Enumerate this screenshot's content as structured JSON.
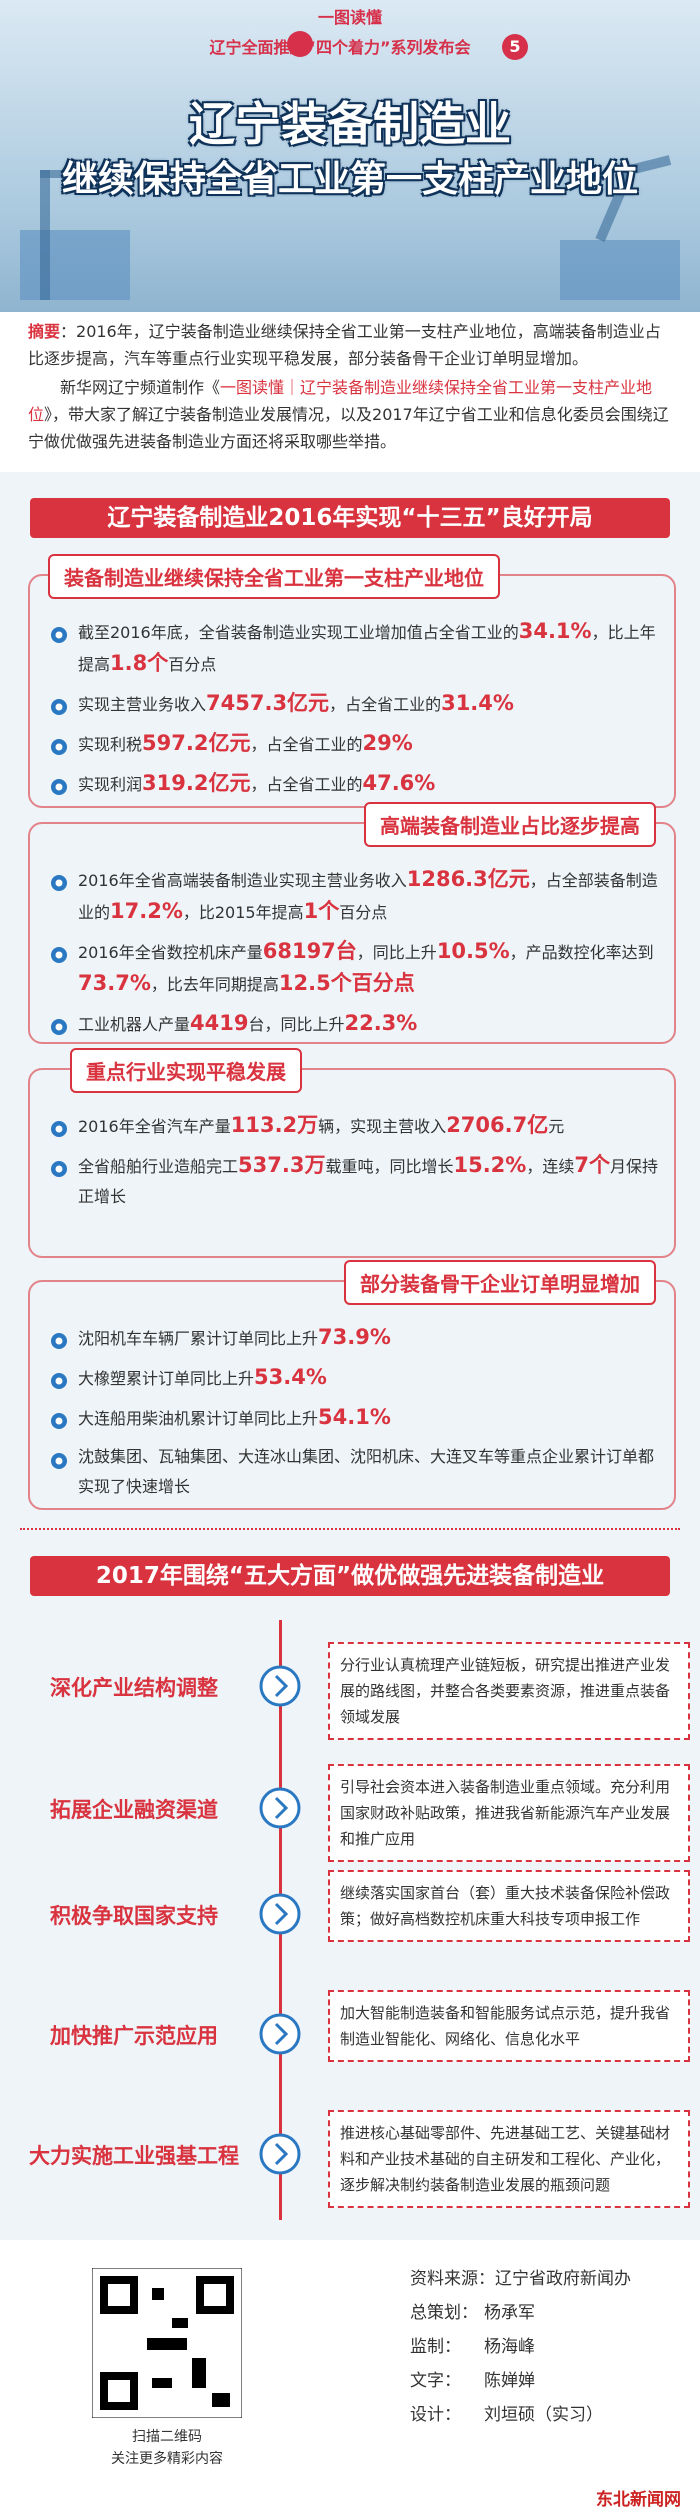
{
  "header": {
    "series_label": "一图读懂",
    "series_title": "辽宁全面推进“四个着力”系列发布会",
    "series_number": "5",
    "title_line1": "辽宁装备制造业",
    "title_line2": "继续保持全省工业第一支柱产业地位"
  },
  "abstract": {
    "label": "摘要",
    "text": "：2016年，辽宁装备制造业继续保持全省工业第一支柱产业地位，高端装备制造业占比逐步提高，汽车等重点行业实现平稳发展，部分装备骨干企业订单明显增加。",
    "intro": "新华网辽宁频道制作《",
    "link": "一图读懂｜辽宁装备制造业继续保持全省工业第一支柱产业地位",
    "outro": "》，带大家了解辽宁装备制造业发展情况，以及2017年辽宁省工业和信息化委员会围绕辽宁做优做强先进装备制造业方面还将采取哪些举措。"
  },
  "section1": {
    "title": "辽宁装备制造业2016年实现“十三五”良好开局",
    "groups": [
      {
        "heading": "装备制造业继续保持全省工业第一支柱产业地位",
        "items": [
          [
            "截至2016年底，全省装备制造业实现工业增加值占全省工业的",
            "34.1%",
            "，比上年提高",
            "1.8个",
            "百分点"
          ],
          [
            "实现主营业务收入",
            "7457.3亿元",
            "，占全省工业的",
            "31.4%"
          ],
          [
            "实现利税",
            "597.2亿元",
            "，占全省工业的",
            "29%"
          ],
          [
            "实现利润",
            "319.2亿元",
            "，占全省工业的",
            "47.6%"
          ]
        ]
      },
      {
        "heading": "高端装备制造业占比逐步提高",
        "items": [
          [
            "2016年全省高端装备制造业实现主营业务收入",
            "1286.3亿元",
            "，占全部装备制造业的",
            "17.2%",
            "，比2015年提高",
            "1个",
            "百分点"
          ],
          [
            "2016年全省数控机床产量",
            "68197台",
            "，同比上升",
            "10.5%",
            "，产品数控化率达到",
            "73.7%",
            "，比去年同期提高",
            "12.5个百分点"
          ],
          [
            "工业机器人产量",
            "4419",
            "台，同比上升",
            "22.3%"
          ]
        ]
      },
      {
        "heading": "重点行业实现平稳发展",
        "items": [
          [
            "2016年全省汽车产量",
            "113.2万",
            "辆，实现主营收入",
            "2706.7亿",
            "元"
          ],
          [
            "全省船舶行业造船完工",
            "537.3万",
            "载重吨，同比增长",
            "15.2%",
            "，连续",
            "7个",
            "月保持正增长"
          ]
        ]
      },
      {
        "heading": "部分装备骨干企业订单明显增加",
        "items": [
          [
            "沈阳机车车辆厂累计订单同比上升",
            "73.9%"
          ],
          [
            "大橡塑累计订单同比上升",
            "53.4%"
          ],
          [
            "大连船用柴油机累计订单同比上升",
            "54.1%"
          ],
          [
            "沈鼓集团、瓦轴集团、大连冰山集团、沈阳机床、大连叉车等重点企业累计订单都实现了快速增长"
          ]
        ]
      }
    ]
  },
  "section2": {
    "title": "2017年围绕“五大方面”做优做强先进装备制造业",
    "measures": [
      {
        "label": "深化产业结构调整",
        "text": "分行业认真梳理产业链短板，研究提出推进产业发展的路线图，并整合各类要素资源，推进重点装备领域发展"
      },
      {
        "label": "拓展企业融资渠道",
        "text": "引导社会资本进入装备制造业重点领域。充分利用国家财政补贴政策，推进我省新能源汽车产业发展和推广应用"
      },
      {
        "label": "积极争取国家支持",
        "text": "继续落实国家首台（套）重大技术装备保险补偿政策；做好高档数控机床重大科技专项申报工作"
      },
      {
        "label": "加快推广示范应用",
        "text": "加大智能制造装备和智能服务试点示范，提升我省制造业智能化、网络化、信息化水平"
      },
      {
        "label": "大力实施工业强基工程",
        "text": "推进核心基础零部件、先进基础工艺、关键基础材料和产业技术基础的自主研发和工程化、产业化，逐步解决制约装备制造业发展的瓶颈问题"
      }
    ]
  },
  "footer": {
    "qr_caption": [
      "扫描二维码",
      "关注更多精彩内容"
    ],
    "credits": [
      [
        "资料来源：",
        "辽宁省政府新闻办"
      ],
      [
        "总策划：",
        "杨承军"
      ],
      [
        "监制：",
        "杨海峰"
      ],
      [
        "文字：",
        "陈婵婵"
      ],
      [
        "设计：",
        "刘垣硕（实习）"
      ]
    ],
    "watermark": "东北新闻网"
  }
}
